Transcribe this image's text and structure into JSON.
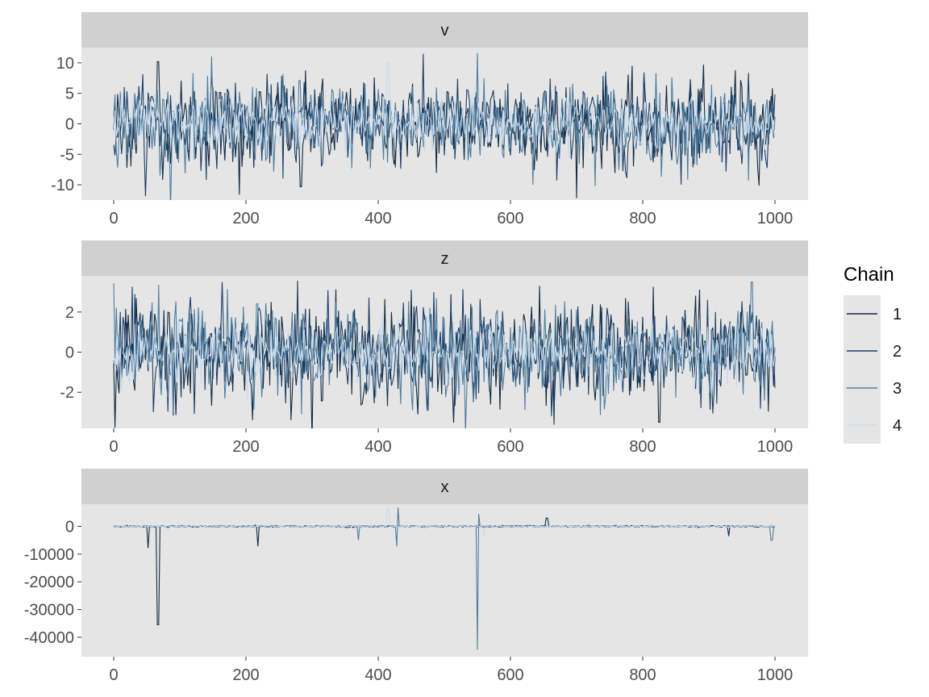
{
  "chart_data": {
    "type": "line",
    "legend": {
      "title": "Chain",
      "position": "right",
      "entries": [
        {
          "label": "1",
          "color": "#132B43"
        },
        {
          "label": "2",
          "color": "#1D3F66"
        },
        {
          "label": "3",
          "color": "#4F7FA0"
        },
        {
          "label": "4",
          "color": "#C6DBEF"
        }
      ]
    },
    "x_range": [
      0,
      1000
    ],
    "x_ticks": [
      "0",
      "200",
      "400",
      "600",
      "800",
      "1000"
    ],
    "panel_background": "#E5E5E5",
    "strip_background": "#D0D0D0",
    "panels": [
      {
        "name": "v",
        "ylim": [
          -12.5,
          12.5
        ],
        "y_ticks": [
          10,
          5,
          0,
          -5,
          -10
        ],
        "y_tick_labels": [
          "10",
          "5",
          "0",
          "-5",
          "-10"
        ],
        "spread": 3.5,
        "spikes": [
          {
            "x": 190,
            "y": -11.6,
            "chain": 1
          },
          {
            "x": 67,
            "y": 10.2,
            "chain": 1
          },
          {
            "x": 550,
            "y": 11.6,
            "chain": 3
          },
          {
            "x": 960,
            "y": -9.3,
            "chain": 3
          },
          {
            "x": 283,
            "y": -10.3,
            "chain": 1
          },
          {
            "x": 940,
            "y": 8.8,
            "chain": 1
          },
          {
            "x": 415,
            "y": 10.1,
            "chain": 4
          }
        ]
      },
      {
        "name": "z",
        "ylim": [
          -3.8,
          3.8
        ],
        "y_ticks": [
          2,
          0,
          -2
        ],
        "y_tick_labels": [
          "2",
          "0",
          "-2"
        ],
        "spread": 1.2,
        "spikes": [
          {
            "x": 965,
            "y": 3.5,
            "chain": 3
          },
          {
            "x": 825,
            "y": -3.5,
            "chain": 1
          },
          {
            "x": 450,
            "y": 3.1,
            "chain": 1
          },
          {
            "x": 460,
            "y": -3.1,
            "chain": 1
          },
          {
            "x": 90,
            "y": -3.0,
            "chain": 3
          }
        ]
      },
      {
        "name": "x",
        "ylim": [
          -47000,
          8000
        ],
        "y_ticks": [
          0,
          -10000,
          -20000,
          -30000,
          -40000
        ],
        "y_tick_labels": [
          "0",
          "-10000",
          "-20000",
          "-30000",
          "-40000"
        ],
        "spread": 250,
        "spikes": [
          {
            "x": 67,
            "y": -35500,
            "chain": 1
          },
          {
            "x": 52,
            "y": -7800,
            "chain": 1
          },
          {
            "x": 218,
            "y": -7200,
            "chain": 1
          },
          {
            "x": 550,
            "y": -44500,
            "chain": 3
          },
          {
            "x": 552,
            "y": 4500,
            "chain": 3
          },
          {
            "x": 430,
            "y": 6800,
            "chain": 3
          },
          {
            "x": 428,
            "y": -7200,
            "chain": 3
          },
          {
            "x": 415,
            "y": 6500,
            "chain": 4
          },
          {
            "x": 370,
            "y": -5000,
            "chain": 3
          },
          {
            "x": 655,
            "y": 3000,
            "chain": 1
          },
          {
            "x": 930,
            "y": -3500,
            "chain": 1
          },
          {
            "x": 995,
            "y": -5000,
            "chain": 3
          },
          {
            "x": 560,
            "y": -3500,
            "chain": 4
          }
        ]
      }
    ]
  }
}
